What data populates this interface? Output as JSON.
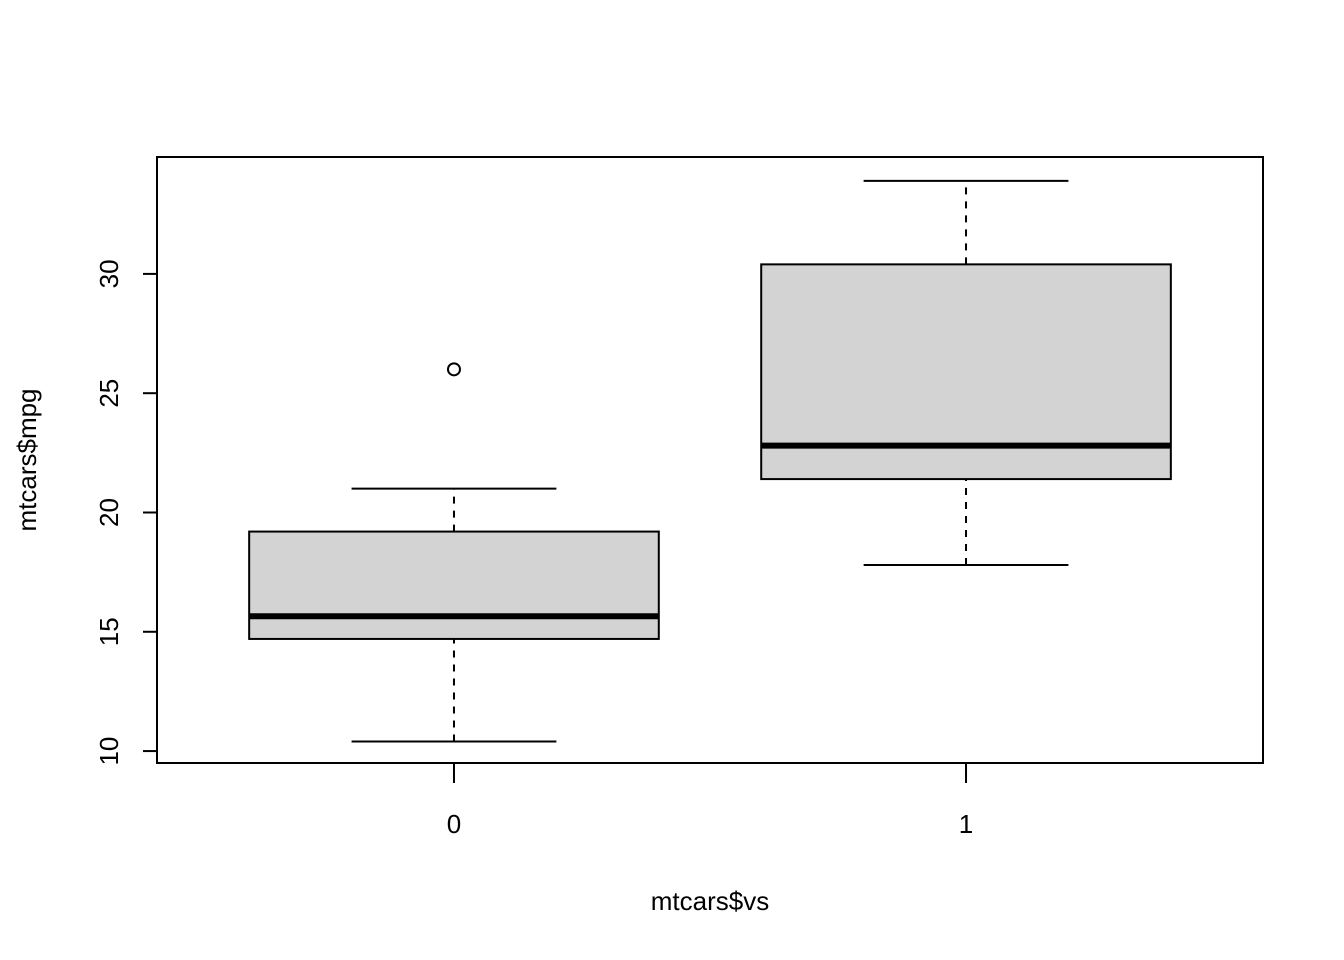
{
  "chart_data": {
    "type": "boxplot",
    "title": "",
    "xlabel": "mtcars$vs",
    "ylabel": "mtcars$mpg",
    "categories": [
      "0",
      "1"
    ],
    "boxes": [
      {
        "category": "0",
        "whisker_low": 10.4,
        "q1": 14.7,
        "median": 15.65,
        "q3": 19.2,
        "whisker_high": 21.0,
        "outliers": [
          26.0
        ]
      },
      {
        "category": "1",
        "whisker_low": 17.8,
        "q1": 21.4,
        "median": 22.8,
        "q3": 30.4,
        "whisker_high": 33.9,
        "outliers": []
      }
    ],
    "y_ticks": [
      "10",
      "15",
      "20",
      "25",
      "30"
    ],
    "ylim": [
      9.5,
      34.9
    ],
    "grid": false,
    "colors": {
      "box_fill": "#d3d3d3",
      "stroke": "#000000"
    }
  }
}
